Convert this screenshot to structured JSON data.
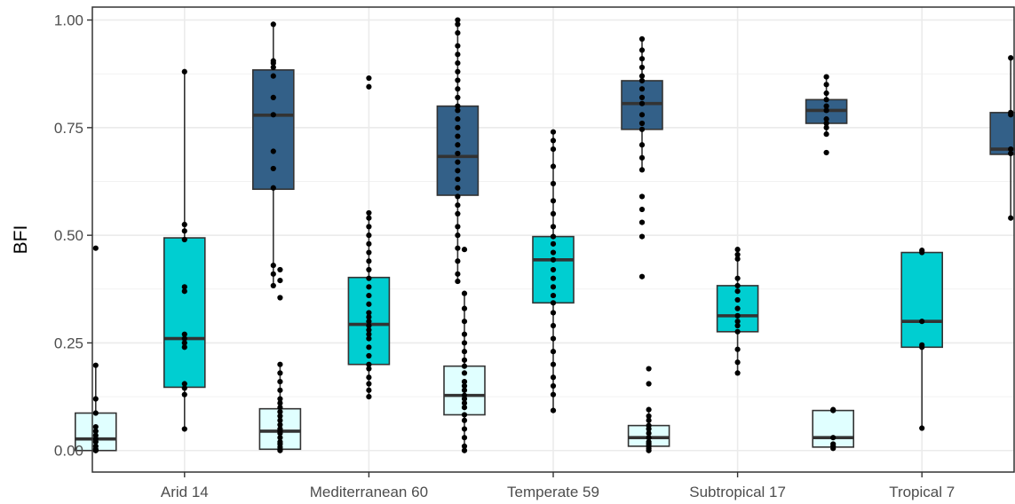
{
  "chart_data": {
    "type": "boxplot",
    "ylabel": "BFI",
    "xlabel": "",
    "ylim": [
      -0.05,
      1.03
    ],
    "yticks": [
      "0.00",
      "0.25",
      "0.50",
      "0.75",
      "1.00"
    ],
    "ytick_values": [
      0,
      0.25,
      0.5,
      0.75,
      1.0
    ],
    "grid": true,
    "categories": [
      "Arid 14",
      "Mediterranean 60",
      "Temperate 59",
      "Subtropical 17",
      "Tropical 7"
    ],
    "series_colors": [
      "#e0ffff",
      "#00ced1",
      "#336088"
    ],
    "boxes": [
      [
        {
          "q1": 0.0,
          "median": 0.027,
          "q3": 0.087,
          "whisker_low": 0.0,
          "whisker_high": 0.198,
          "points": [
            0.0,
            0.0,
            0.003,
            0.01,
            0.02,
            0.027,
            0.035,
            0.045,
            0.055,
            0.087,
            0.12,
            0.198,
            0.47
          ]
        },
        {
          "q1": 0.147,
          "median": 0.26,
          "q3": 0.494,
          "whisker_low": 0.05,
          "whisker_high": 0.88,
          "points": [
            0.05,
            0.13,
            0.145,
            0.155,
            0.24,
            0.25,
            0.26,
            0.27,
            0.37,
            0.38,
            0.49,
            0.51,
            0.525,
            0.88
          ]
        },
        {
          "q1": 0.607,
          "median": 0.779,
          "q3": 0.884,
          "whisker_low": 0.383,
          "whisker_high": 0.99,
          "points": [
            0.383,
            0.41,
            0.43,
            0.61,
            0.655,
            0.695,
            0.78,
            0.82,
            0.87,
            0.89,
            0.9,
            0.905,
            0.99
          ]
        }
      ],
      [
        {
          "q1": 0.003,
          "median": 0.045,
          "q3": 0.097,
          "whisker_low": 0.0,
          "whisker_high": 0.2,
          "points": [
            0.0,
            0.003,
            0.008,
            0.015,
            0.02,
            0.03,
            0.04,
            0.045,
            0.05,
            0.06,
            0.07,
            0.08,
            0.09,
            0.1,
            0.11,
            0.12,
            0.14,
            0.16,
            0.18,
            0.2,
            0.355,
            0.395,
            0.42
          ]
        },
        {
          "q1": 0.2,
          "median": 0.293,
          "q3": 0.402,
          "whisker_low": 0.125,
          "whisker_high": 0.552,
          "points": [
            0.125,
            0.14,
            0.155,
            0.17,
            0.19,
            0.2,
            0.22,
            0.24,
            0.26,
            0.27,
            0.28,
            0.29,
            0.3,
            0.31,
            0.32,
            0.34,
            0.36,
            0.38,
            0.4,
            0.42,
            0.44,
            0.46,
            0.48,
            0.5,
            0.52,
            0.54,
            0.552,
            0.845,
            0.865
          ]
        },
        {
          "q1": 0.593,
          "median": 0.683,
          "q3": 0.8,
          "whisker_low": 0.393,
          "whisker_high": 1.0,
          "points": [
            0.393,
            0.41,
            0.44,
            0.47,
            0.5,
            0.52,
            0.55,
            0.57,
            0.59,
            0.61,
            0.63,
            0.65,
            0.67,
            0.69,
            0.71,
            0.73,
            0.75,
            0.77,
            0.79,
            0.8,
            0.82,
            0.84,
            0.86,
            0.88,
            0.9,
            0.92,
            0.94,
            0.97,
            0.99,
            1.0
          ]
        }
      ],
      [
        {
          "q1": 0.083,
          "median": 0.128,
          "q3": 0.196,
          "whisker_low": 0.0,
          "whisker_high": 0.365,
          "points": [
            0.0,
            0.01,
            0.03,
            0.05,
            0.07,
            0.083,
            0.1,
            0.11,
            0.12,
            0.128,
            0.14,
            0.15,
            0.16,
            0.18,
            0.196,
            0.21,
            0.23,
            0.25,
            0.27,
            0.3,
            0.33,
            0.365,
            0.467
          ]
        },
        {
          "q1": 0.343,
          "median": 0.443,
          "q3": 0.497,
          "whisker_low": 0.093,
          "whisker_high": 0.74,
          "points": [
            0.093,
            0.13,
            0.15,
            0.17,
            0.2,
            0.23,
            0.26,
            0.29,
            0.32,
            0.343,
            0.36,
            0.38,
            0.4,
            0.42,
            0.443,
            0.46,
            0.48,
            0.497,
            0.52,
            0.55,
            0.58,
            0.62,
            0.66,
            0.7,
            0.72,
            0.74
          ]
        },
        {
          "q1": 0.746,
          "median": 0.806,
          "q3": 0.859,
          "whisker_low": 0.652,
          "whisker_high": 0.956,
          "points": [
            0.404,
            0.497,
            0.53,
            0.56,
            0.59,
            0.652,
            0.68,
            0.71,
            0.746,
            0.76,
            0.78,
            0.806,
            0.82,
            0.84,
            0.859,
            0.87,
            0.89,
            0.91,
            0.93,
            0.956
          ]
        }
      ],
      [
        {
          "q1": 0.01,
          "median": 0.03,
          "q3": 0.058,
          "whisker_low": 0.0,
          "whisker_high": 0.095,
          "points": [
            0.0,
            0.005,
            0.01,
            0.015,
            0.02,
            0.03,
            0.04,
            0.05,
            0.058,
            0.07,
            0.08,
            0.095,
            0.155,
            0.19
          ]
        },
        {
          "q1": 0.276,
          "median": 0.313,
          "q3": 0.383,
          "whisker_low": 0.18,
          "whisker_high": 0.467,
          "points": [
            0.18,
            0.205,
            0.235,
            0.276,
            0.29,
            0.3,
            0.313,
            0.33,
            0.35,
            0.37,
            0.383,
            0.4,
            0.445,
            0.455,
            0.467
          ]
        },
        {
          "q1": 0.76,
          "median": 0.79,
          "q3": 0.815,
          "whisker_low": 0.735,
          "whisker_high": 0.868,
          "points": [
            0.692,
            0.735,
            0.75,
            0.76,
            0.77,
            0.79,
            0.8,
            0.815,
            0.83,
            0.85,
            0.868
          ]
        }
      ],
      [
        {
          "q1": 0.008,
          "median": 0.03,
          "q3": 0.093,
          "whisker_low": 0.005,
          "whisker_high": 0.095,
          "points": [
            0.005,
            0.01,
            0.015,
            0.03,
            0.093,
            0.095
          ]
        },
        {
          "q1": 0.24,
          "median": 0.3,
          "q3": 0.46,
          "whisker_low": 0.052,
          "whisker_high": 0.465,
          "points": [
            0.052,
            0.24,
            0.245,
            0.3,
            0.46,
            0.465
          ]
        },
        {
          "q1": 0.688,
          "median": 0.7,
          "q3": 0.785,
          "whisker_low": 0.54,
          "whisker_high": 0.912,
          "points": [
            0.54,
            0.69,
            0.7,
            0.78,
            0.785,
            0.912
          ]
        }
      ]
    ]
  }
}
